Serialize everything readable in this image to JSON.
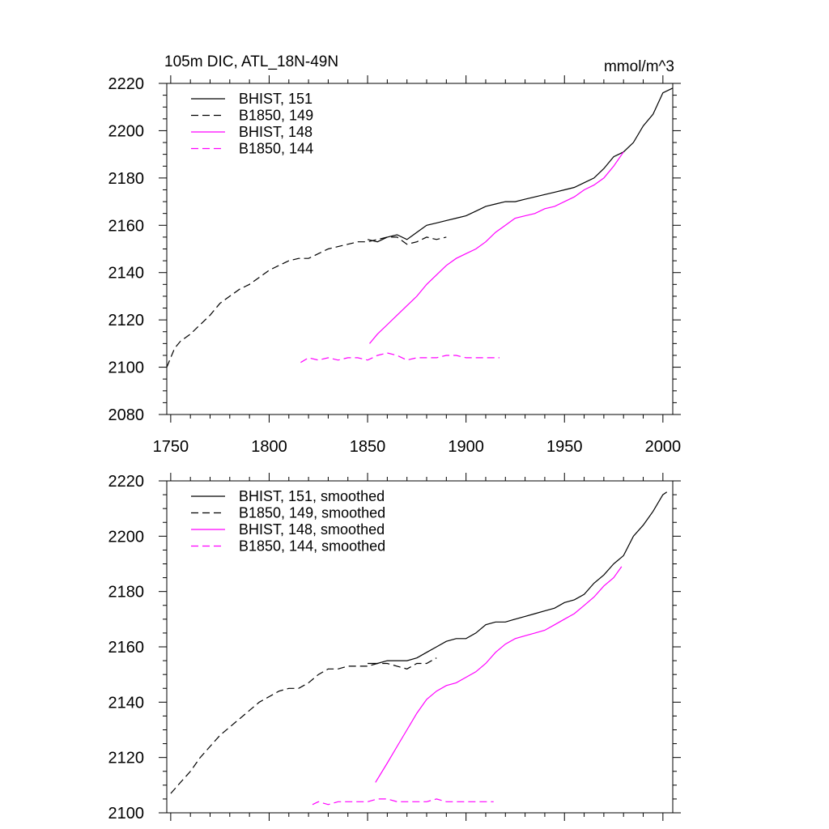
{
  "chart_data": [
    {
      "type": "line",
      "title": "105m DIC, ATL_18N-49N",
      "units": "mmol/m^3",
      "xlim": [
        1748,
        2005
      ],
      "ylim": [
        2080,
        2220
      ],
      "xticks": [
        1750,
        1800,
        1850,
        1900,
        1950,
        2000
      ],
      "yticks": [
        2080,
        2100,
        2120,
        2140,
        2160,
        2180,
        2200,
        2220
      ],
      "show_xtick_labels": true,
      "legend_position": "top-left",
      "series": [
        {
          "name": "BHIST, 151",
          "color": "#000000",
          "dash": "solid",
          "x": [
            1850,
            1855,
            1860,
            1865,
            1870,
            1875,
            1880,
            1885,
            1890,
            1895,
            1900,
            1905,
            1910,
            1915,
            1920,
            1925,
            1930,
            1935,
            1940,
            1945,
            1950,
            1955,
            1960,
            1965,
            1970,
            1975,
            1980,
            1985,
            1990,
            1995,
            2000,
            2005
          ],
          "y": [
            2154,
            2153,
            2155,
            2156,
            2154,
            2157,
            2160,
            2161,
            2162,
            2163,
            2164,
            2166,
            2168,
            2169,
            2170,
            2170,
            2171,
            2172,
            2173,
            2174,
            2175,
            2176,
            2178,
            2180,
            2184,
            2189,
            2191,
            2195,
            2202,
            2207,
            2216,
            2218
          ]
        },
        {
          "name": "B1850, 149",
          "color": "#000000",
          "dash": "dashed",
          "x": [
            1748,
            1752,
            1755,
            1760,
            1765,
            1770,
            1775,
            1780,
            1785,
            1790,
            1795,
            1800,
            1805,
            1810,
            1815,
            1820,
            1825,
            1830,
            1835,
            1840,
            1845,
            1850,
            1855,
            1860,
            1865,
            1870,
            1875,
            1880,
            1885,
            1890
          ],
          "y": [
            2100,
            2108,
            2111,
            2114,
            2118,
            2122,
            2127,
            2130,
            2133,
            2135,
            2138,
            2141,
            2143,
            2145,
            2146,
            2146,
            2148,
            2150,
            2151,
            2152,
            2153,
            2153,
            2154,
            2155,
            2155,
            2152,
            2153,
            2155,
            2154,
            2155
          ]
        },
        {
          "name": "BHIST, 148",
          "color": "#ff00ff",
          "dash": "solid",
          "x": [
            1851,
            1855,
            1860,
            1865,
            1870,
            1875,
            1880,
            1885,
            1890,
            1895,
            1900,
            1905,
            1910,
            1915,
            1920,
            1925,
            1930,
            1935,
            1940,
            1945,
            1950,
            1955,
            1960,
            1965,
            1970,
            1975,
            1980
          ],
          "y": [
            2110,
            2114,
            2118,
            2122,
            2126,
            2130,
            2135,
            2139,
            2143,
            2146,
            2148,
            2150,
            2153,
            2157,
            2160,
            2163,
            2164,
            2165,
            2167,
            2168,
            2170,
            2172,
            2175,
            2177,
            2180,
            2185,
            2191
          ]
        },
        {
          "name": "B1850, 144",
          "color": "#ff00ff",
          "dash": "dashed",
          "x": [
            1816,
            1820,
            1825,
            1830,
            1835,
            1840,
            1845,
            1850,
            1855,
            1860,
            1865,
            1870,
            1875,
            1880,
            1885,
            1890,
            1895,
            1900,
            1905,
            1910,
            1915,
            1917
          ],
          "y": [
            2102,
            2104,
            2103,
            2104,
            2103,
            2104,
            2104,
            2103,
            2105,
            2106,
            2105,
            2103,
            2104,
            2104,
            2104,
            2105,
            2105,
            2104,
            2104,
            2104,
            2104,
            2104
          ]
        }
      ]
    },
    {
      "type": "line",
      "title": "",
      "xlim": [
        1748,
        2005
      ],
      "ylim": [
        2100,
        2220
      ],
      "xticks": [
        1750,
        1800,
        1850,
        1900,
        1950,
        2000
      ],
      "yticks": [
        2100,
        2120,
        2140,
        2160,
        2180,
        2200,
        2220
      ],
      "show_xtick_labels": false,
      "legend_position": "top-left",
      "series": [
        {
          "name": "BHIST, 151, smoothed",
          "color": "#000000",
          "dash": "solid",
          "x": [
            1850,
            1855,
            1860,
            1865,
            1870,
            1875,
            1880,
            1885,
            1890,
            1895,
            1900,
            1905,
            1910,
            1915,
            1920,
            1925,
            1930,
            1935,
            1940,
            1945,
            1950,
            1955,
            1960,
            1965,
            1970,
            1975,
            1980,
            1985,
            1990,
            1995,
            2000,
            2002
          ],
          "y": [
            2154,
            2154,
            2155,
            2155,
            2155,
            2156,
            2158,
            2160,
            2162,
            2163,
            2163,
            2165,
            2168,
            2169,
            2169,
            2170,
            2171,
            2172,
            2173,
            2174,
            2176,
            2177,
            2179,
            2183,
            2186,
            2190,
            2193,
            2200,
            2204,
            2209,
            2215,
            2216
          ]
        },
        {
          "name": "B1850, 149, smoothed",
          "color": "#000000",
          "dash": "dashed",
          "x": [
            1750,
            1755,
            1760,
            1765,
            1770,
            1775,
            1780,
            1785,
            1790,
            1795,
            1800,
            1805,
            1810,
            1815,
            1820,
            1825,
            1830,
            1835,
            1840,
            1845,
            1850,
            1855,
            1860,
            1865,
            1870,
            1875,
            1880,
            1885
          ],
          "y": [
            2107,
            2111,
            2115,
            2120,
            2124,
            2128,
            2131,
            2134,
            2137,
            2140,
            2142,
            2144,
            2145,
            2145,
            2147,
            2150,
            2152,
            2152,
            2153,
            2153,
            2153,
            2154,
            2154,
            2153,
            2152,
            2154,
            2154,
            2156
          ]
        },
        {
          "name": "BHIST, 148, smoothed",
          "color": "#ff00ff",
          "dash": "solid",
          "x": [
            1854,
            1860,
            1865,
            1870,
            1875,
            1880,
            1885,
            1890,
            1895,
            1900,
            1905,
            1910,
            1915,
            1920,
            1925,
            1930,
            1935,
            1940,
            1945,
            1950,
            1955,
            1960,
            1965,
            1970,
            1975,
            1979
          ],
          "y": [
            2111,
            2118,
            2124,
            2130,
            2136,
            2141,
            2144,
            2146,
            2147,
            2149,
            2151,
            2154,
            2158,
            2161,
            2163,
            2164,
            2165,
            2166,
            2168,
            2170,
            2172,
            2175,
            2178,
            2182,
            2185,
            2189
          ]
        },
        {
          "name": "B1850, 144, smoothed",
          "color": "#ff00ff",
          "dash": "dashed",
          "x": [
            1822,
            1825,
            1830,
            1835,
            1840,
            1845,
            1850,
            1855,
            1860,
            1865,
            1870,
            1875,
            1880,
            1885,
            1890,
            1895,
            1900,
            1905,
            1910,
            1914
          ],
          "y": [
            2103,
            2104,
            2103,
            2104,
            2104,
            2104,
            2104,
            2105,
            2105,
            2104,
            2104,
            2104,
            2104,
            2105,
            2104,
            2104,
            2104,
            2104,
            2104,
            2104
          ]
        }
      ]
    }
  ]
}
